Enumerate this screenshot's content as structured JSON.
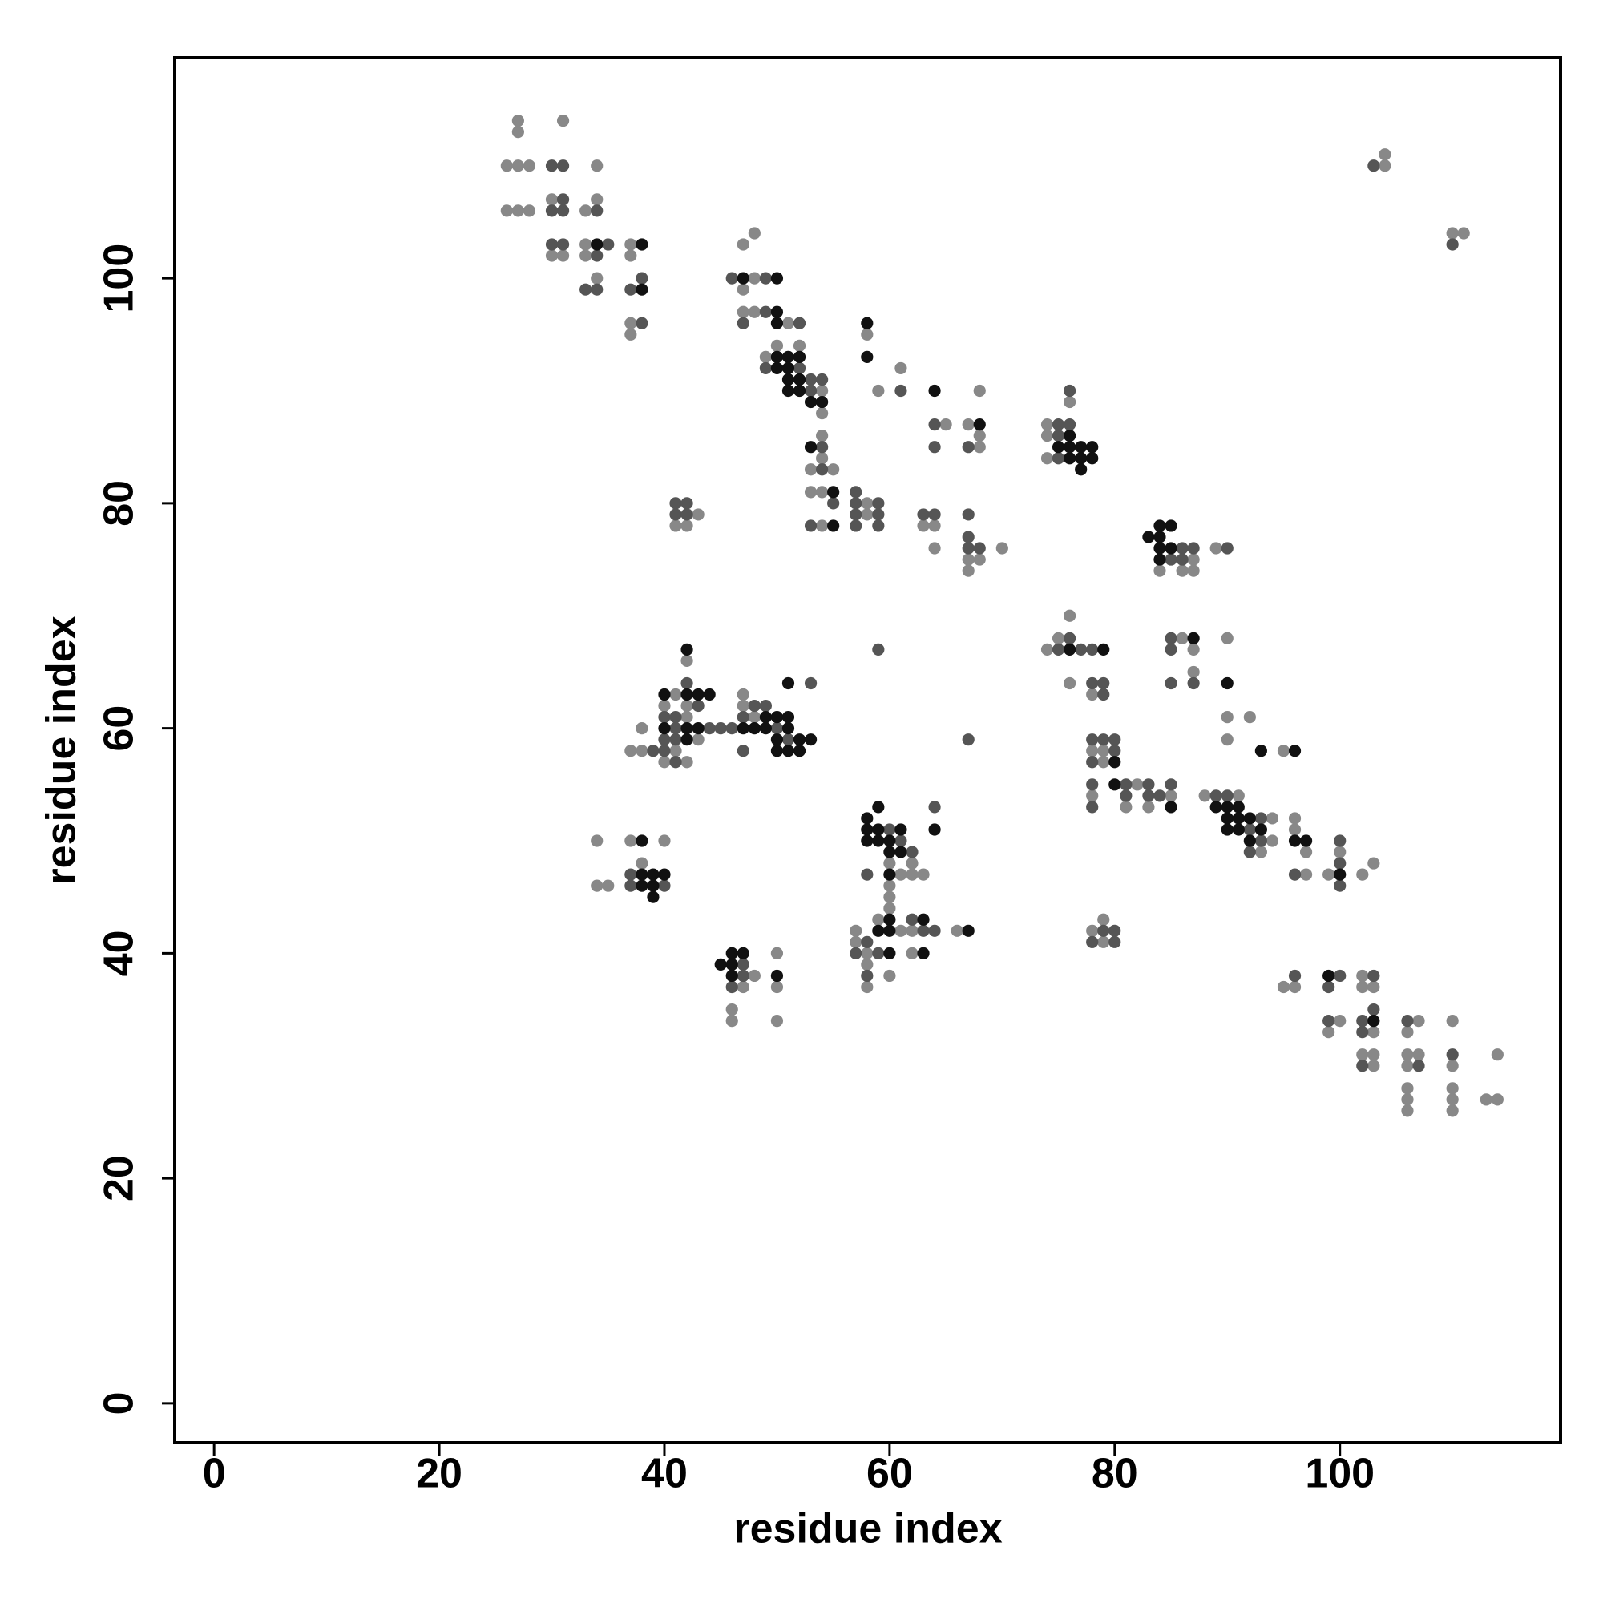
{
  "chart_data": {
    "type": "scatter",
    "xlabel": "residue index",
    "ylabel": "residue index",
    "xlim": [
      -3.5,
      119.6
    ],
    "ylim": [
      -3.5,
      119.6
    ],
    "xticks": [
      0,
      20,
      40,
      60,
      80,
      100
    ],
    "yticks": [
      0,
      20,
      40,
      60,
      80,
      100
    ],
    "series": [
      {
        "color": "#888888",
        "x": [
          27,
          27,
          31,
          26,
          27,
          28,
          34,
          30,
          34,
          26,
          27,
          28,
          33,
          33,
          30,
          31,
          33,
          34,
          37,
          37,
          37,
          37,
          48,
          47,
          48,
          47,
          47,
          48,
          51,
          50,
          52,
          49,
          54,
          54,
          58,
          59,
          61,
          68,
          65,
          67,
          68,
          68,
          54,
          54,
          53,
          55,
          53,
          54,
          54,
          58,
          58,
          43,
          41,
          42,
          63,
          64,
          64,
          67,
          68,
          67,
          70,
          76,
          74,
          74,
          74,
          87,
          84,
          86,
          87,
          89,
          76,
          74,
          75,
          76,
          78,
          86,
          87,
          87,
          90,
          90,
          92,
          90,
          95,
          78,
          79,
          79,
          82,
          78,
          85,
          81,
          83,
          88,
          91,
          94,
          94,
          93,
          96,
          96,
          97,
          97,
          99,
          100,
          102,
          103,
          95,
          96,
          100,
          99,
          102,
          102,
          103,
          103,
          102,
          103,
          103,
          107,
          106,
          106,
          107,
          106,
          106,
          106,
          106,
          110,
          110,
          110,
          110,
          110,
          113,
          114,
          114,
          104,
          104,
          110,
          111,
          42,
          41,
          40,
          42,
          42,
          38,
          43,
          37,
          38,
          41,
          40,
          42,
          47,
          47,
          48,
          34,
          37,
          40,
          38,
          34,
          35,
          62,
          60,
          61,
          62,
          63,
          60,
          60,
          60,
          59,
          61,
          57,
          57,
          58,
          58,
          60,
          58,
          62,
          66,
          62,
          48,
          47,
          46,
          46,
          50,
          50,
          50,
          78,
          79,
          79
        ],
        "y": [
          114,
          113,
          114,
          110,
          110,
          110,
          110,
          107,
          107,
          106,
          106,
          106,
          106,
          103,
          102,
          102,
          102,
          100,
          103,
          102,
          96,
          95,
          104,
          103,
          100,
          99,
          97,
          97,
          96,
          94,
          94,
          93,
          90,
          88,
          95,
          90,
          92,
          90,
          87,
          87,
          85,
          86,
          86,
          84,
          83,
          83,
          81,
          81,
          78,
          80,
          79,
          79,
          78,
          78,
          78,
          78,
          76,
          75,
          75,
          74,
          76,
          89,
          87,
          86,
          84,
          75,
          74,
          74,
          74,
          76,
          70,
          67,
          68,
          64,
          63,
          68,
          67,
          65,
          68,
          61,
          61,
          59,
          58,
          58,
          58,
          57,
          55,
          54,
          54,
          53,
          53,
          54,
          54,
          52,
          50,
          49,
          52,
          51,
          49,
          47,
          47,
          49,
          47,
          48,
          37,
          37,
          34,
          33,
          38,
          37,
          37,
          33,
          31,
          31,
          30,
          34,
          33,
          31,
          31,
          30,
          28,
          27,
          26,
          34,
          30,
          28,
          27,
          26,
          27,
          27,
          31,
          110,
          111,
          104,
          104,
          66,
          63,
          62,
          62,
          61,
          60,
          59,
          58,
          58,
          58,
          57,
          57,
          63,
          62,
          61,
          50,
          50,
          50,
          48,
          46,
          46,
          48,
          48,
          47,
          47,
          47,
          46,
          45,
          44,
          43,
          42,
          42,
          41,
          40,
          39,
          38,
          37,
          42,
          42,
          40,
          38,
          37,
          35,
          34,
          40,
          37,
          34,
          42,
          43,
          41
        ]
      },
      {
        "color": "#555555",
        "x": [
          30,
          31,
          31,
          30,
          31,
          34,
          30,
          31,
          35,
          34,
          33,
          34,
          38,
          37,
          38,
          46,
          49,
          47,
          49,
          52,
          49,
          52,
          53,
          54,
          53,
          61,
          64,
          67,
          64,
          54,
          54,
          55,
          53,
          57,
          57,
          57,
          57,
          59,
          59,
          59,
          41,
          42,
          41,
          42,
          63,
          64,
          67,
          67,
          67,
          68,
          76,
          75,
          76,
          75,
          75,
          86,
          87,
          85,
          86,
          90,
          75,
          77,
          78,
          76,
          78,
          79,
          79,
          85,
          85,
          87,
          85,
          78,
          79,
          80,
          80,
          78,
          78,
          81,
          83,
          81,
          83,
          84,
          78,
          85,
          89,
          90,
          93,
          92,
          93,
          92,
          96,
          100,
          100,
          100,
          96,
          100,
          99,
          99,
          103,
          103,
          102,
          102,
          102,
          106,
          107,
          110,
          103,
          110,
          42,
          43,
          40,
          41,
          41,
          44,
          45,
          46,
          40,
          41,
          39,
          40,
          41,
          48,
          49,
          47,
          50,
          51,
          47,
          53,
          59,
          67,
          37,
          37,
          40,
          60,
          61,
          62,
          58,
          57,
          59,
          58,
          58,
          64,
          62,
          63,
          64,
          47,
          47,
          46,
          80,
          79,
          78,
          80
        ],
        "y": [
          110,
          110,
          107,
          106,
          106,
          106,
          103,
          103,
          103,
          102,
          99,
          99,
          100,
          99,
          96,
          100,
          100,
          96,
          97,
          96,
          92,
          92,
          91,
          91,
          90,
          90,
          87,
          85,
          85,
          85,
          83,
          80,
          78,
          81,
          80,
          79,
          78,
          80,
          79,
          78,
          80,
          80,
          79,
          79,
          79,
          79,
          79,
          77,
          76,
          76,
          90,
          87,
          87,
          86,
          84,
          76,
          76,
          75,
          75,
          76,
          67,
          67,
          67,
          68,
          64,
          64,
          63,
          68,
          67,
          64,
          64,
          59,
          59,
          59,
          58,
          57,
          55,
          55,
          55,
          54,
          54,
          54,
          53,
          55,
          54,
          54,
          52,
          51,
          50,
          49,
          47,
          50,
          48,
          46,
          38,
          38,
          37,
          34,
          38,
          35,
          34,
          33,
          30,
          34,
          30,
          31,
          110,
          103,
          64,
          62,
          61,
          61,
          60,
          60,
          60,
          60,
          59,
          59,
          58,
          58,
          57,
          62,
          62,
          61,
          60,
          59,
          58,
          64,
          67,
          59,
          47,
          46,
          46,
          51,
          50,
          49,
          41,
          40,
          40,
          38,
          47,
          53,
          43,
          42,
          42,
          39,
          38,
          37,
          42,
          42,
          41,
          41
        ]
      },
      {
        "color": "#111111",
        "x": [
          34,
          38,
          38,
          47,
          50,
          50,
          50,
          50,
          51,
          52,
          50,
          51,
          51,
          52,
          51,
          52,
          53,
          54,
          58,
          58,
          64,
          68,
          53,
          55,
          55,
          76,
          76,
          75,
          76,
          77,
          78,
          77,
          78,
          77,
          83,
          84,
          85,
          84,
          84,
          85,
          84,
          76,
          79,
          87,
          90,
          93,
          96,
          80,
          80,
          85,
          89,
          90,
          91,
          90,
          91,
          92,
          90,
          91,
          93,
          92,
          96,
          97,
          100,
          99,
          103,
          42,
          43,
          44,
          42,
          40,
          40,
          42,
          43,
          47,
          42,
          49,
          50,
          51,
          48,
          49,
          51,
          50,
          52,
          53,
          50,
          51,
          52,
          51,
          38,
          38,
          39,
          40,
          38,
          39,
          39,
          58,
          59,
          58,
          59,
          61,
          58,
          59,
          60,
          60,
          61,
          60,
          60,
          59,
          60,
          60,
          64,
          63,
          67,
          63,
          45,
          46,
          47,
          46,
          46,
          50
        ],
        "y": [
          103,
          103,
          99,
          100,
          100,
          97,
          96,
          93,
          93,
          93,
          92,
          92,
          91,
          91,
          90,
          90,
          89,
          89,
          96,
          93,
          90,
          87,
          85,
          81,
          78,
          86,
          84,
          85,
          85,
          85,
          85,
          84,
          84,
          83,
          77,
          78,
          78,
          77,
          76,
          76,
          75,
          67,
          67,
          68,
          64,
          58,
          58,
          57,
          55,
          53,
          53,
          53,
          53,
          52,
          52,
          52,
          51,
          51,
          51,
          50,
          50,
          50,
          47,
          38,
          34,
          67,
          63,
          63,
          63,
          63,
          60,
          60,
          60,
          60,
          59,
          61,
          61,
          61,
          60,
          60,
          60,
          59,
          59,
          59,
          58,
          58,
          58,
          64,
          50,
          47,
          47,
          47,
          46,
          46,
          45,
          52,
          53,
          51,
          51,
          51,
          50,
          50,
          50,
          49,
          49,
          47,
          43,
          42,
          42,
          40,
          51,
          43,
          42,
          40,
          39,
          40,
          40,
          39,
          38,
          38
        ]
      }
    ]
  }
}
